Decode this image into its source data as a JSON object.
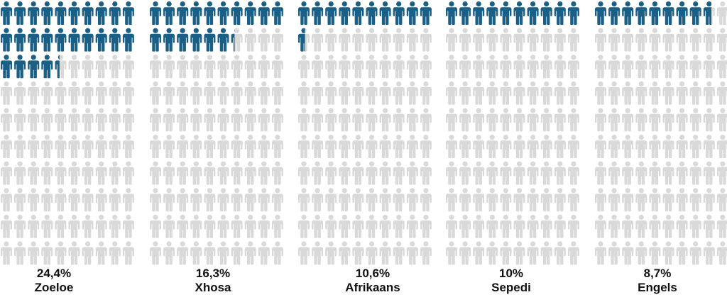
{
  "chart_data": {
    "type": "pictograph",
    "units_per_panel": 100,
    "panels": [
      {
        "label": "Zoeloe",
        "value_text": "24,4%",
        "value": 24.4
      },
      {
        "label": "Xhosa",
        "value_text": "16,3%",
        "value": 16.3
      },
      {
        "label": "Afrikaans",
        "value_text": "10,6%",
        "value": 10.6
      },
      {
        "label": "Sepedi",
        "value_text": "10%",
        "value": 10.0
      },
      {
        "label": "Engels",
        "value_text": "8,7%",
        "value": 8.7
      }
    ]
  },
  "colors": {
    "filled": "#1a5f85",
    "empty": "#d9d9d9",
    "text": "#111111"
  }
}
